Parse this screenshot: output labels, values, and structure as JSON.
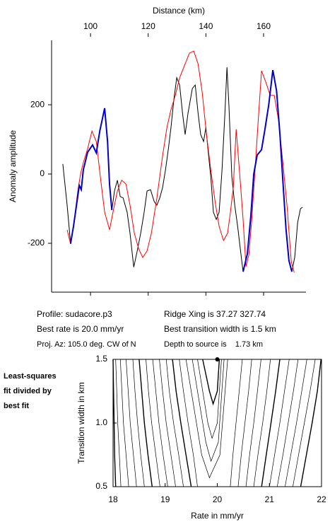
{
  "chart_data": [
    {
      "type": "line",
      "xlabel": "Distance (km)",
      "ylabel": "Anomaly amplitude",
      "xlim": [
        86.5,
        174.7
      ],
      "ylim": [
        -341,
        386
      ],
      "xticks": [
        100,
        120,
        140,
        160
      ],
      "yticks": [
        -200,
        0,
        200
      ],
      "series": [
        {
          "color": "#000000",
          "x": [
            90.4,
            91.9,
            93.1,
            94.1,
            96.1,
            96.8,
            97.5,
            99.0,
            100.7,
            102.0,
            103.2,
            104.9,
            105.9,
            106.6,
            107.4,
            108.3,
            109.3,
            110.3,
            111.3,
            112.7,
            113.7,
            115.0,
            116.2,
            117.4,
            118.6,
            119.6,
            120.8,
            122.1,
            123.0,
            124.0,
            125.0,
            126.0,
            127.0,
            127.9,
            128.9,
            129.9,
            130.9,
            131.9,
            132.8,
            133.8,
            135.3,
            136.3,
            137.3,
            138.2,
            139.2,
            140.0,
            140.7,
            141.7,
            142.6,
            143.6,
            144.6,
            145.6,
            146.6,
            147.3,
            148.0,
            149.0,
            150.0,
            151.0,
            152.0,
            152.9,
            154.4,
            155.6,
            156.6,
            157.8,
            159.3,
            160.5,
            161.8,
            163.2,
            164.5,
            165.7,
            166.7,
            167.8,
            168.8,
            169.8,
            170.8,
            171.8,
            172.8,
            173.5
          ],
          "values": [
            29,
            -90,
            -201,
            -151,
            -33,
            -45,
            12,
            63,
            84,
            61,
            124,
            190,
            94,
            -29,
            -104,
            -49,
            -18,
            -65,
            -69,
            -110,
            -171,
            -269,
            -222,
            -171,
            -110,
            -49,
            -45,
            -80,
            -90,
            -69,
            -39,
            12,
            73,
            135,
            216,
            278,
            257,
            176,
            114,
            176,
            247,
            257,
            176,
            114,
            94,
            135,
            73,
            -8,
            -110,
            -131,
            -110,
            12,
            176,
            308,
            196,
            -8,
            -90,
            -151,
            -220,
            -282,
            -230,
            -120,
            0,
            55,
            70,
            130,
            200,
            300,
            240,
            110,
            -20,
            -160,
            -250,
            -282,
            -240,
            -140,
            -100,
            -96
          ]
        },
        {
          "color": "#ff0000",
          "x": [
            91.9,
            93.1,
            94.1,
            95.6,
            96.6,
            97.5,
            99.0,
            100.5,
            102.0,
            103.4,
            104.9,
            106.6,
            107.8,
            109.3,
            110.8,
            112.3,
            113.7,
            115.2,
            116.7,
            118.1,
            119.6,
            121.1,
            123.0,
            125.0,
            126.5,
            127.9,
            129.4,
            130.9,
            132.8,
            134.3,
            135.8,
            137.3,
            138.7,
            140.2,
            141.7,
            143.2,
            144.6,
            146.1,
            147.5,
            148.5,
            149.5,
            150.5,
            152.0,
            152.9,
            153.9,
            154.9,
            155.9,
            156.9,
            158.3,
            159.3,
            160.7,
            162.3,
            163.7,
            165.2,
            166.7,
            168.1,
            169.6,
            170.6
          ],
          "values": [
            -161,
            -202,
            -151,
            -49,
            2,
            33,
            73,
            124,
            94,
            -8,
            -110,
            -161,
            -110,
            -49,
            -18,
            -29,
            -90,
            -171,
            -216,
            -241,
            -222,
            -171,
            -69,
            53,
            135,
            186,
            227,
            278,
            318,
            349,
            355,
            318,
            237,
            114,
            12,
            -80,
            -151,
            -192,
            -171,
            -110,
            -39,
            129,
            -29,
            -131,
            -267,
            -233,
            -131,
            -8,
            176,
            298,
            267,
            227,
            227,
            155,
            33,
            -90,
            -253,
            -284
          ]
        },
        {
          "color": "#0000cc",
          "x": [
            93.1,
            94.1,
            96.1,
            96.8,
            97.5,
            99.0,
            100.7,
            102.0,
            103.2,
            104.9,
            105.9,
            106.6,
            107.4
          ],
          "values": [
            -201,
            -151,
            -33,
            -45,
            12,
            63,
            84,
            61,
            124,
            190,
            94,
            -29,
            -104
          ]
        },
        {
          "color": "#0000cc",
          "x": [
            152.9,
            154.4,
            155.6,
            156.6,
            157.8,
            159.3,
            160.5,
            161.8,
            163.2,
            164.5,
            165.7,
            166.7,
            167.8,
            168.8,
            169.8
          ],
          "values": [
            -282,
            -230,
            -120,
            0,
            55,
            70,
            130,
            200,
            300,
            240,
            110,
            -20,
            -160,
            -250,
            -282
          ]
        }
      ]
    },
    {
      "type": "contour",
      "xlabel": "Rate in mm/yr",
      "ylabel": "Transition width in km",
      "color": "#000000",
      "xlim": [
        18,
        22
      ],
      "ylim": [
        0.5,
        1.5
      ],
      "xticks": [
        18,
        19,
        20,
        21,
        22
      ],
      "yticks": [
        0.5,
        {
          "value": 1,
          "label": "1.0"
        },
        1.5
      ],
      "point": {
        "x": 20,
        "y": 1.5
      },
      "lines": [
        {
          "x": [
            18.05,
            18.03,
            18.02,
            18.01,
            18.0
          ],
          "y": [
            0.5,
            0.75,
            1,
            1.25,
            1.5
          ]
        },
        {
          "x": [
            18.15,
            18.12,
            18.09,
            18.07,
            18.05
          ],
          "y": [
            0.5,
            0.75,
            1,
            1.25,
            1.5
          ]
        },
        {
          "x": [
            18.3,
            18.25,
            18.2,
            18.17,
            18.14
          ],
          "y": [
            0.5,
            0.75,
            1,
            1.25,
            1.5
          ]
        },
        {
          "x": [
            18.45,
            18.39,
            18.33,
            18.29,
            18.25
          ],
          "y": [
            0.5,
            0.75,
            1,
            1.25,
            1.5
          ]
        },
        {
          "x": [
            18.6,
            18.53,
            18.47,
            18.42,
            18.38
          ],
          "y": [
            0.5,
            0.75,
            1,
            1.25,
            1.5
          ]
        },
        {
          "x": [
            18.75,
            18.67,
            18.6,
            18.55,
            18.5
          ],
          "y": [
            0.5,
            0.75,
            1,
            1.25,
            1.5
          ]
        },
        {
          "x": [
            18.9,
            18.82,
            18.74,
            18.68,
            18.63
          ],
          "y": [
            0.5,
            0.75,
            1,
            1.25,
            1.5
          ]
        },
        {
          "x": [
            19.05,
            18.96,
            18.88,
            18.82,
            18.76
          ],
          "y": [
            0.5,
            0.75,
            1,
            1.25,
            1.5
          ]
        },
        {
          "x": [
            19.2,
            19.11,
            19.02,
            18.95,
            18.89
          ],
          "y": [
            0.5,
            0.75,
            1,
            1.25,
            1.5
          ]
        },
        {
          "x": [
            19.35,
            19.26,
            19.16,
            19.08,
            19.02
          ],
          "y": [
            0.5,
            0.75,
            1,
            1.25,
            1.5
          ]
        },
        {
          "x": [
            19.5,
            19.4,
            19.3,
            19.21,
            19.14
          ],
          "y": [
            0.5,
            0.75,
            1,
            1.25,
            1.5
          ]
        },
        {
          "x": [
            19.62,
            19.54,
            19.44,
            19.35,
            19.27
          ],
          "y": [
            0.5,
            0.75,
            1,
            1.25,
            1.5
          ]
        },
        {
          "x": [
            19.4,
            19.7,
            19.85,
            20.05,
            20.2
          ],
          "y": [
            1.5,
            0.75,
            0.57,
            0.75,
            1.5
          ]
        },
        {
          "x": [
            19.52,
            19.78,
            19.88,
            20.02,
            20.13
          ],
          "y": [
            1.5,
            0.85,
            0.7,
            0.85,
            1.5
          ]
        },
        {
          "x": [
            19.62,
            19.82,
            19.9,
            20.0,
            20.08
          ],
          "y": [
            1.5,
            1,
            0.88,
            1,
            1.5
          ]
        },
        {
          "x": [
            19.72,
            19.85,
            19.92,
            20.0,
            20.04
          ],
          "y": [
            1.5,
            1.25,
            1.15,
            1.25,
            1.5
          ]
        },
        {
          "x": [
            20.25,
            20.3,
            20.36,
            20.42,
            20.48
          ],
          "y": [
            0.5,
            0.75,
            1,
            1.25,
            1.5
          ]
        },
        {
          "x": [
            20.4,
            20.46,
            20.53,
            20.6,
            20.66
          ],
          "y": [
            0.5,
            0.75,
            1,
            1.25,
            1.5
          ]
        },
        {
          "x": [
            20.55,
            20.62,
            20.7,
            20.77,
            20.84
          ],
          "y": [
            0.5,
            0.75,
            1,
            1.25,
            1.5
          ]
        },
        {
          "x": [
            20.7,
            20.78,
            20.87,
            20.95,
            21.02
          ],
          "y": [
            0.5,
            0.75,
            1,
            1.25,
            1.5
          ]
        },
        {
          "x": [
            20.85,
            20.94,
            21.03,
            21.12,
            21.2
          ],
          "y": [
            0.5,
            0.75,
            1,
            1.25,
            1.5
          ]
        },
        {
          "x": [
            21.0,
            21.1,
            21.2,
            21.29,
            21.38
          ],
          "y": [
            0.5,
            0.75,
            1,
            1.25,
            1.5
          ]
        },
        {
          "x": [
            21.15,
            21.26,
            21.36,
            21.46,
            21.55
          ],
          "y": [
            0.5,
            0.75,
            1,
            1.25,
            1.5
          ]
        },
        {
          "x": [
            21.3,
            21.41,
            21.52,
            21.62,
            21.72
          ],
          "y": [
            0.5,
            0.75,
            1,
            1.25,
            1.5
          ]
        },
        {
          "x": [
            21.45,
            21.56,
            21.67,
            21.78,
            21.88
          ],
          "y": [
            0.5,
            0.75,
            1,
            1.25,
            1.5
          ]
        },
        {
          "x": [
            21.6,
            21.71,
            21.82,
            21.92,
            21.99
          ],
          "y": [
            0.5,
            0.75,
            1,
            1.25,
            1.5
          ]
        }
      ]
    }
  ],
  "annotations": {
    "profile": "Profile: sudacore.p3",
    "best_rate": "Best rate is 20.0 mm/yr",
    "proj_az": "Proj. Az: 105.0 deg. CW of N",
    "ridge_xing": "Ridge Xing is 37.27 327.74",
    "best_width": "Best transition width is 1.5 km",
    "depth": "Depth to source is    1.73 km",
    "note": [
      "Least-squares",
      "fit divided by",
      "best fit"
    ]
  }
}
